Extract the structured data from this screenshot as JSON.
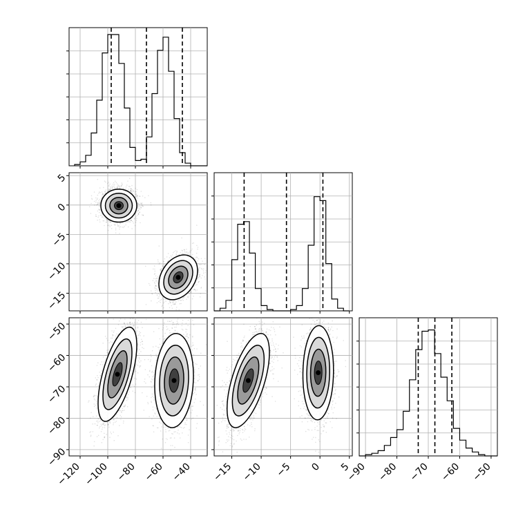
{
  "chart_data": {
    "type": "corner",
    "grid": true,
    "parameters": [
      {
        "range": [
          -128,
          -28
        ],
        "ticks": [
          -120,
          -100,
          -80,
          -60,
          -40
        ],
        "tick_labels": [
          "−120",
          "−100",
          "−80",
          "−60",
          "−40"
        ],
        "quantiles": [
          -97.5,
          -72,
          -46
        ],
        "hist": {
          "edges": [
            -124,
            -120,
            -116,
            -112,
            -108,
            -104,
            -100,
            -96,
            -92,
            -88,
            -84,
            -80,
            -76,
            -72,
            -68,
            -64,
            -60,
            -56,
            -52,
            -48,
            -44,
            -40,
            -36,
            -32,
            -28
          ],
          "counts": [
            0.01,
            0.03,
            0.08,
            0.25,
            0.5,
            0.86,
            1.0,
            1.0,
            0.78,
            0.44,
            0.14,
            0.04,
            0.05,
            0.22,
            0.55,
            0.88,
            0.98,
            0.72,
            0.36,
            0.1,
            0.02,
            0.0,
            0.0,
            0.0
          ]
        }
      },
      {
        "range": [
          -18,
          5.5
        ],
        "ticks": [
          -15,
          -10,
          -5,
          0,
          5
        ],
        "tick_labels": [
          "−15",
          "−10",
          "−5",
          "0",
          "5"
        ],
        "quantiles": [
          -12.9,
          -5.7,
          0.5
        ],
        "hist": {
          "edges": [
            -18,
            -17,
            -16,
            -15,
            -14,
            -13,
            -12,
            -11,
            -10,
            -9,
            -8,
            -7,
            -6,
            -5,
            -4,
            -3,
            -2,
            -1,
            0,
            1,
            2,
            3,
            4,
            5
          ],
          "counts": [
            0.0,
            0.02,
            0.08,
            0.39,
            0.66,
            0.68,
            0.44,
            0.17,
            0.04,
            0.01,
            0.0,
            0.0,
            0.0,
            0.01,
            0.04,
            0.17,
            0.5,
            0.87,
            0.84,
            0.36,
            0.09,
            0.02,
            0.0
          ]
        }
      },
      {
        "range": [
          -92,
          -48
        ],
        "ticks": [
          -90,
          -80,
          -70,
          -60,
          -50
        ],
        "tick_labels": [
          "−90",
          "−80",
          "−70",
          "−60",
          "−50"
        ],
        "quantiles": [
          -73.2,
          -67.9,
          -62.5
        ],
        "hist": {
          "edges": [
            -92,
            -90,
            -88,
            -86,
            -84,
            -82,
            -80,
            -78,
            -76,
            -74,
            -72,
            -70,
            -68,
            -66,
            -64,
            -62,
            -60,
            -58,
            -56,
            -54,
            -52,
            -50,
            -48
          ],
          "counts": [
            0.0,
            0.01,
            0.02,
            0.04,
            0.08,
            0.14,
            0.2,
            0.34,
            0.58,
            0.81,
            0.95,
            0.96,
            0.78,
            0.6,
            0.42,
            0.21,
            0.12,
            0.06,
            0.03,
            0.01,
            0.0,
            0.0
          ]
        }
      }
    ],
    "pairs": [
      {
        "x_param": 0,
        "y_param": 1,
        "y_ticks": [
          5,
          0,
          -5,
          -10,
          -15
        ],
        "y_tick_labels": [
          "5",
          "0",
          "−5",
          "−10",
          "−15"
        ],
        "clusters": [
          {
            "center": [
              -92,
              -0.1
            ],
            "sd": [
              6.5,
              1.4
            ],
            "corr": 0.0,
            "n": 2200
          },
          {
            "center": [
              -49,
              -12.3
            ],
            "sd": [
              7.0,
              1.9
            ],
            "corr": 0.3,
            "n": 2000
          }
        ]
      },
      {
        "x_param": 0,
        "y_param": 2,
        "y_ticks": [
          -50,
          -60,
          -70,
          -80,
          -90
        ],
        "y_tick_labels": [
          "−50",
          "−60",
          "−70",
          "−80",
          "−90"
        ],
        "clusters": [
          {
            "center": [
              -93,
              -66
            ],
            "sd": [
              7.0,
              7.5
            ],
            "corr": 0.62,
            "n": 2200
          },
          {
            "center": [
              -52,
              -68
            ],
            "sd": [
              7.0,
              7.5
            ],
            "corr": 0.1,
            "n": 2000
          }
        ]
      },
      {
        "x_param": 1,
        "y_param": 2,
        "y_ticks": [],
        "y_tick_labels": [],
        "clusters": [
          {
            "center": [
              -12.2,
              -68
            ],
            "sd": [
              1.8,
              7.5
            ],
            "corr": 0.6,
            "n": 2200
          },
          {
            "center": [
              -0.3,
              -65.5
            ],
            "sd": [
              1.3,
              7.5
            ],
            "corr": 0.05,
            "n": 2000
          }
        ]
      }
    ]
  }
}
